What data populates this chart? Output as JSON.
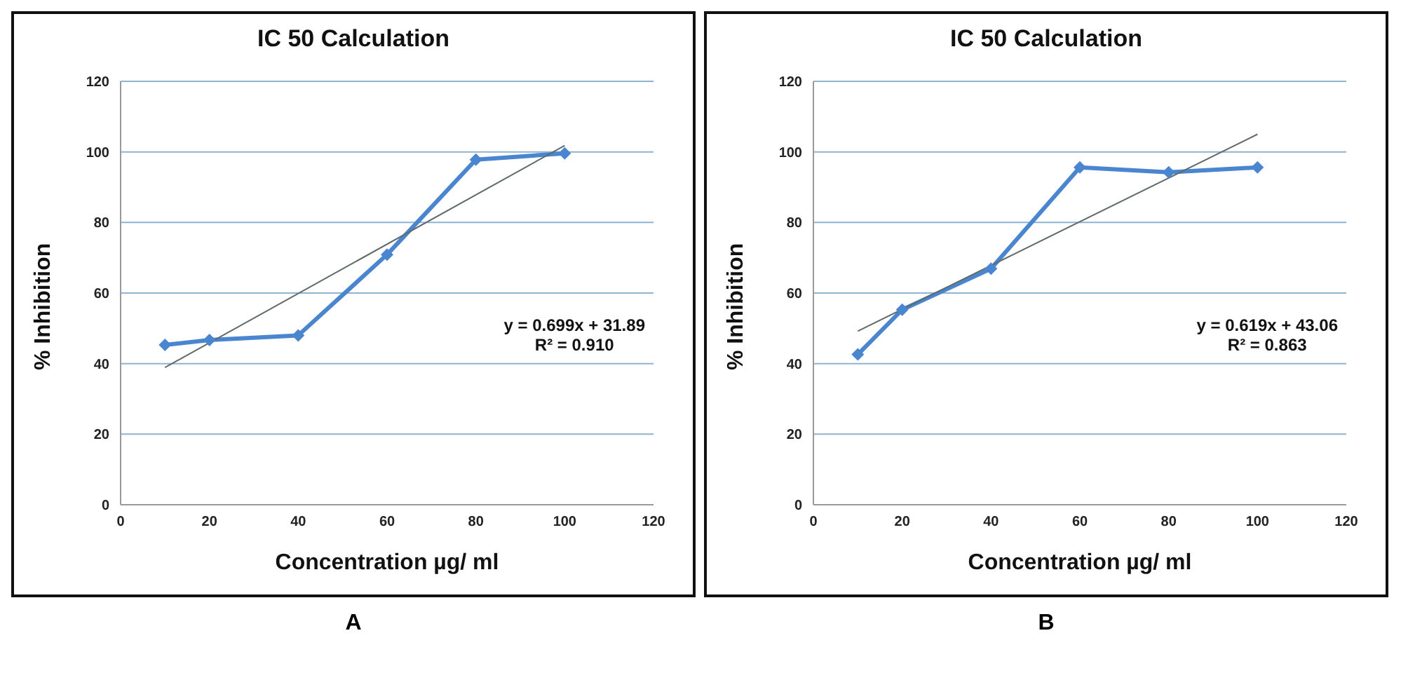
{
  "chart_data": [
    {
      "type": "line",
      "title": "IC 50 Calculation",
      "xlabel": "Concentration µg/ ml",
      "ylabel": "% Inhibition",
      "xlim": [
        0,
        120
      ],
      "xticks": [
        0,
        20,
        40,
        60,
        80,
        100,
        120
      ],
      "ylim": [
        0,
        120
      ],
      "yticks": [
        0,
        20,
        40,
        60,
        80,
        100,
        120
      ],
      "grid": "y",
      "marker": "diamond",
      "line_style": "solid",
      "annotations": [
        "y = 0.699x + 31.89",
        "R² = 0.910",
        "A"
      ],
      "series": [
        {
          "color": "#4a86d0",
          "x": [
            10,
            20,
            40,
            60,
            80,
            100
          ],
          "values": [
            45.3,
            46.7,
            48.0,
            70.9,
            97.8,
            99.6
          ]
        },
        {
          "type": "line",
          "color": "#5f6b68",
          "marker": "none",
          "x": [
            10,
            100
          ],
          "values": [
            38.9,
            101.8
          ]
        }
      ]
    },
    {
      "type": "line",
      "title": "IC 50 Calculation",
      "xlabel": "Concentration µg/ ml",
      "ylabel": "% Inhibition",
      "xlim": [
        0,
        120
      ],
      "xticks": [
        0,
        20,
        40,
        60,
        80,
        100,
        120
      ],
      "ylim": [
        0,
        120
      ],
      "yticks": [
        0,
        20,
        40,
        60,
        80,
        100,
        120
      ],
      "grid": "y",
      "marker": "diamond",
      "line_style": "solid",
      "annotations": [
        "y = 0.619x + 43.06",
        "R² = 0.863",
        "B"
      ],
      "series": [
        {
          "color": "#4a86d0",
          "x": [
            10,
            20,
            40,
            60,
            80,
            100
          ],
          "values": [
            42.6,
            55.3,
            66.9,
            95.6,
            94.2,
            95.6
          ]
        },
        {
          "type": "line",
          "color": "#5f6b68",
          "marker": "none",
          "x": [
            10,
            100
          ],
          "values": [
            49.2,
            105.0
          ]
        }
      ]
    }
  ]
}
